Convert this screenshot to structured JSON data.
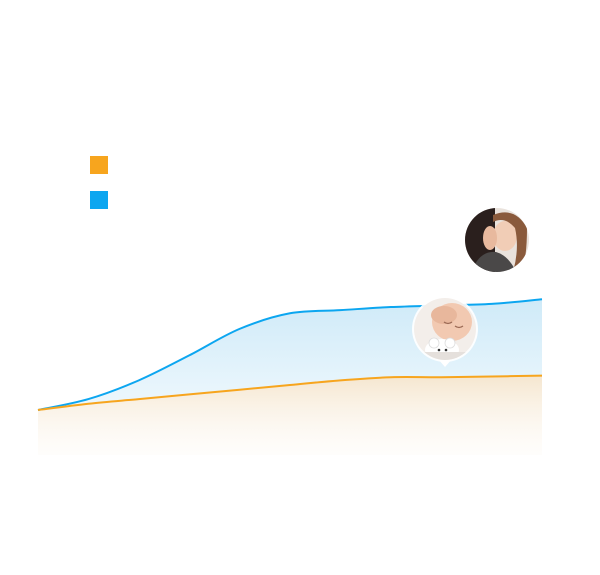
{
  "legend": {
    "items": [
      {
        "name": "orange-series",
        "label": "",
        "color": "#f7a51e"
      },
      {
        "name": "blue-series",
        "label": "",
        "color": "#0ca6f0"
      }
    ]
  },
  "chart_data": {
    "type": "area",
    "title": "",
    "xlabel": "",
    "ylabel": "",
    "grid": false,
    "legend_position": "top-left",
    "x": [
      0,
      10,
      20,
      30,
      40,
      50,
      60,
      70,
      80,
      90,
      100
    ],
    "xlim": [
      0,
      100
    ],
    "ylim": [
      0,
      100
    ],
    "series": [
      {
        "color": "#0ca6f0",
        "fill_top": "#cfeaf8",
        "fill_bottom": "#eef8fd",
        "values": [
          0,
          7,
          19,
          35,
          52,
          62,
          64,
          66,
          67,
          68,
          71
        ]
      },
      {
        "color": "#f7a51e",
        "fill_top": "#f5e6cf",
        "fill_bottom": "#fdf9f3",
        "values": [
          0,
          4,
          7,
          10,
          13,
          16,
          19,
          21,
          21,
          21.5,
          22
        ]
      }
    ],
    "annotations": [
      {
        "name": "couple-photo-marker",
        "x": 91
      },
      {
        "name": "baby-photo-marker",
        "x": 81
      }
    ]
  }
}
